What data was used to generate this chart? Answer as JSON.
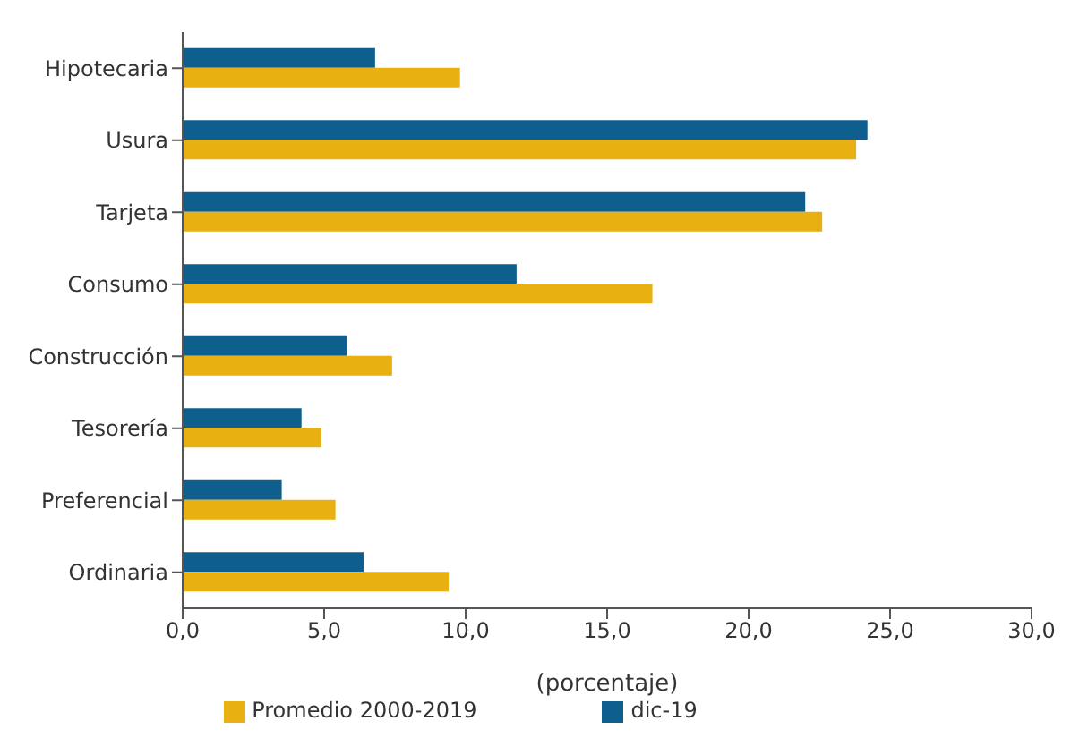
{
  "chart_data": {
    "type": "bar",
    "orientation": "horizontal",
    "xlabel": "(porcentaje)",
    "categories": [
      "Hipotecaria",
      "Usura",
      "Tarjeta",
      "Consumo",
      "Construcción",
      "Tesorería",
      "Preferencial",
      "Ordinaria"
    ],
    "series": [
      {
        "name": "dic-19",
        "color": "#0f5f8e",
        "values": [
          6.8,
          24.2,
          22.0,
          11.8,
          5.8,
          4.2,
          3.5,
          6.4
        ]
      },
      {
        "name": "Promedio 2000-2019",
        "color": "#e9b011",
        "values": [
          9.8,
          23.8,
          22.6,
          16.6,
          7.4,
          4.9,
          5.4,
          9.4
        ]
      }
    ],
    "xlim": [
      0,
      30
    ],
    "xticks": [
      {
        "value": 0,
        "label": "0,0"
      },
      {
        "value": 5,
        "label": "5,0"
      },
      {
        "value": 10,
        "label": "10,0"
      },
      {
        "value": 15,
        "label": "15,0"
      },
      {
        "value": 20,
        "label": "20,0"
      },
      {
        "value": 25,
        "label": "25,0"
      },
      {
        "value": 30,
        "label": "30,0"
      }
    ],
    "grid": false,
    "legend": "bottom"
  }
}
